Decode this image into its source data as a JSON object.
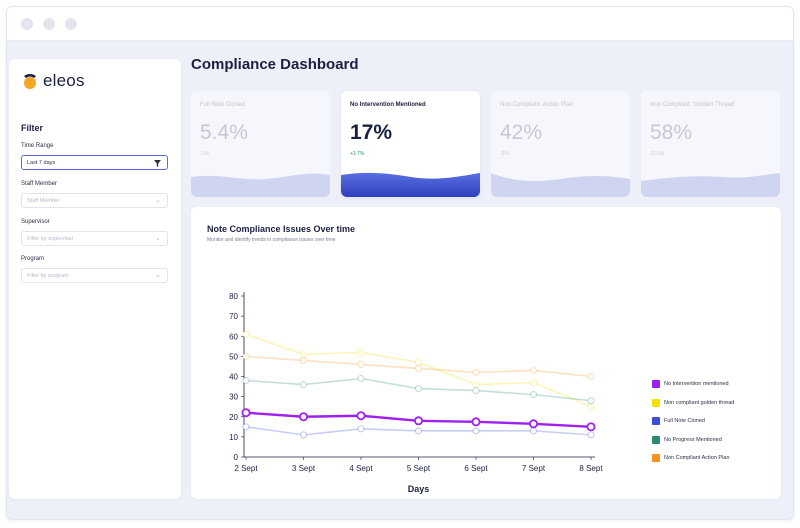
{
  "window": {
    "dots": [
      "#e3e5ec",
      "#e3e5ec",
      "#e3e5ec"
    ]
  },
  "brand": {
    "name": "eleos",
    "colors": {
      "orange": "#f5a623",
      "navy": "#1c2040"
    }
  },
  "filter": {
    "title": "Filter",
    "fields": [
      {
        "label": "Time Range",
        "value": "Last 7 days",
        "icon": "funnel-icon"
      },
      {
        "label": "Staff Member",
        "placeholder": "Staff Member",
        "icon": "chevron-down-icon"
      },
      {
        "label": "Supervisor",
        "placeholder": "Filter by supervisor",
        "icon": "chevron-down-icon"
      },
      {
        "label": "Program",
        "placeholder": "Filter by program",
        "icon": "chevron-down-icon"
      }
    ]
  },
  "page": {
    "title": "Compliance Dashboard"
  },
  "cards": [
    {
      "title": "Full Note Cloned",
      "value": "5.4%",
      "delta": "-1%"
    },
    {
      "title": "No Intervention Mentioned",
      "value": "17%",
      "delta": "+3.7%"
    },
    {
      "title": "Non Compliant: Action Plan",
      "value": "42%",
      "delta": "-3%"
    },
    {
      "title": "Non Compliant: 'Golden Thread'",
      "value": "58%",
      "delta": "12.5%"
    }
  ],
  "chart": {
    "title": "Note Compliance Issues Over time",
    "subtitle": "Monitor and identify trends in compliance issues over time"
  },
  "chart_data": {
    "type": "line",
    "x": [
      "2 Sept",
      "3 Sept",
      "4 Sept",
      "5 Sept",
      "6 Sept",
      "7 Sept",
      "8 Sept"
    ],
    "xlabel": "Days",
    "ylabel": "",
    "ylim": [
      0,
      80
    ],
    "yticks": [
      0,
      10,
      20,
      30,
      40,
      50,
      60,
      70,
      80
    ],
    "grid": false,
    "legend_position": "right",
    "series": [
      {
        "name": "No Intervention mentioned",
        "color": "#a020f0",
        "values": [
          22,
          20,
          20.5,
          18,
          17.5,
          16.5,
          15
        ],
        "highlight": true
      },
      {
        "name": "Non compliant golden thread",
        "color": "#f2e000",
        "values": [
          61,
          51,
          52,
          47,
          36,
          37,
          25
        ],
        "highlight": false
      },
      {
        "name": "Full Note Cloned",
        "color": "#3a4fd8",
        "values": [
          15,
          11,
          14,
          13,
          13,
          13,
          11
        ],
        "highlight": false
      },
      {
        "name": "No Progress Mentioned",
        "color": "#2e8b7a",
        "values": [
          38,
          36,
          39,
          34,
          33,
          31,
          28
        ],
        "highlight": false
      },
      {
        "name": "Non Compliant Action Plan",
        "color": "#f7931e",
        "values": [
          50,
          48,
          46,
          44,
          42,
          43,
          40
        ],
        "highlight": false
      }
    ]
  }
}
